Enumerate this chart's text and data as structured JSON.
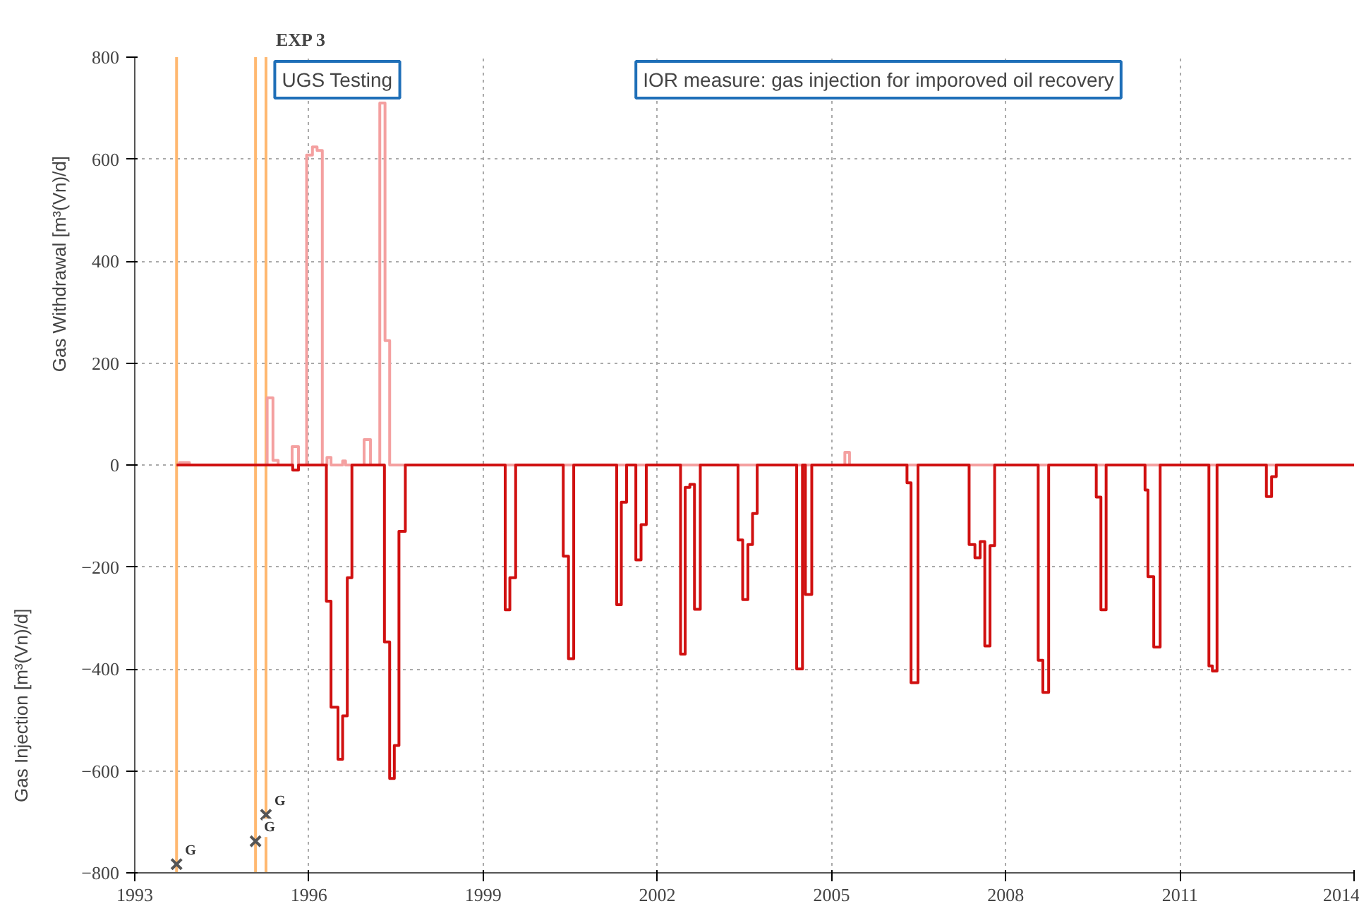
{
  "chart_data": {
    "type": "step",
    "title": "EXP 3",
    "ylabel": "Gas Withdrawal [m³(Vn)/d]",
    "annotations": [
      "Gas Injection [m³(Vn)/d]",
      "UGS Testing",
      "IOR measure: gas injection for imporoved oil recovery"
    ],
    "series": [
      {
        "color": "#f4a0a0",
        "x": [
          1993.72,
          1993.77,
          1993.94,
          1995.28,
          1995.38,
          1995.47,
          1995.71,
          1995.82,
          1995.96,
          1996.06,
          1996.14,
          1996.23,
          1996.31,
          1996.38,
          1996.58,
          1996.63,
          1996.95,
          1997.06,
          1997.22,
          1997.31,
          1997.39,
          2005.23,
          2005.31,
          2014
        ],
        "values": [
          0,
          5,
          0,
          132,
          9,
          0,
          36,
          0,
          608,
          624,
          617,
          0,
          15,
          0,
          8,
          0,
          50,
          0,
          710,
          244,
          0,
          25,
          0,
          0
        ]
      },
      {
        "color": "#d01010",
        "x": [
          1993.72,
          1995.72,
          1995.82,
          1996.3,
          1996.38,
          1996.5,
          1996.58,
          1996.66,
          1996.74,
          1997.3,
          1997.39,
          1997.47,
          1997.55,
          1997.66,
          1999.38,
          1999.46,
          1999.56,
          2000.38,
          2000.47,
          2000.56,
          2001.3,
          2001.38,
          2001.47,
          2001.63,
          2001.72,
          2001.81,
          2002.4,
          2002.48,
          2002.56,
          2002.64,
          2002.74,
          2003.39,
          2003.47,
          2003.56,
          2003.64,
          2003.72,
          2004.4,
          2004.5,
          2004.55,
          2004.66,
          2006.3,
          2006.37,
          2006.49,
          2007.37,
          2007.47,
          2007.56,
          2007.64,
          2007.73,
          2007.81,
          2008.56,
          2008.64,
          2008.74,
          2009.56,
          2009.64,
          2009.73,
          2010.4,
          2010.45,
          2010.55,
          2010.66,
          2011.5,
          2011.56,
          2011.64,
          2012.49,
          2012.58,
          2012.66,
          2014
        ],
        "values": [
          0,
          -10,
          0,
          -267,
          -475,
          -577,
          -492,
          -221,
          0,
          -347,
          -615,
          -550,
          -130,
          0,
          -284,
          -221,
          0,
          -179,
          -380,
          0,
          -274,
          -73,
          0,
          -186,
          -117,
          0,
          -371,
          -44,
          -38,
          -283,
          0,
          -147,
          -264,
          -156,
          -95,
          0,
          -400,
          0,
          -254,
          0,
          -35,
          -427,
          0,
          -156,
          -182,
          -150,
          -355,
          -158,
          0,
          -383,
          -446,
          0,
          -63,
          -284,
          0,
          -49,
          -219,
          -357,
          0,
          -394,
          -404,
          0,
          -62,
          -23,
          0,
          0
        ]
      },
      {
        "type": "scatter",
        "marker": "cross",
        "color": "#555555",
        "x": [
          1993.72,
          1995.08,
          1995.26
        ],
        "values": [
          -783,
          -738,
          -686
        ],
        "value_labels": [
          "G",
          "G",
          "G"
        ]
      }
    ],
    "ref_lines": [
      {
        "axis": "x",
        "value": 1993.72,
        "color": "#ffb870"
      },
      {
        "axis": "x",
        "value": 1995.08,
        "color": "#ffb870"
      },
      {
        "axis": "x",
        "value": 1995.26,
        "color": "#ffb870"
      }
    ],
    "xlim": [
      1993,
      2014
    ],
    "xticks": [
      1993,
      1996,
      1999,
      2002,
      2005,
      2008,
      2011,
      2014
    ],
    "ylim": [
      -800,
      800
    ],
    "yticks": [
      -800,
      -600,
      -400,
      -200,
      0,
      200,
      400,
      600,
      800
    ],
    "grid": true
  }
}
